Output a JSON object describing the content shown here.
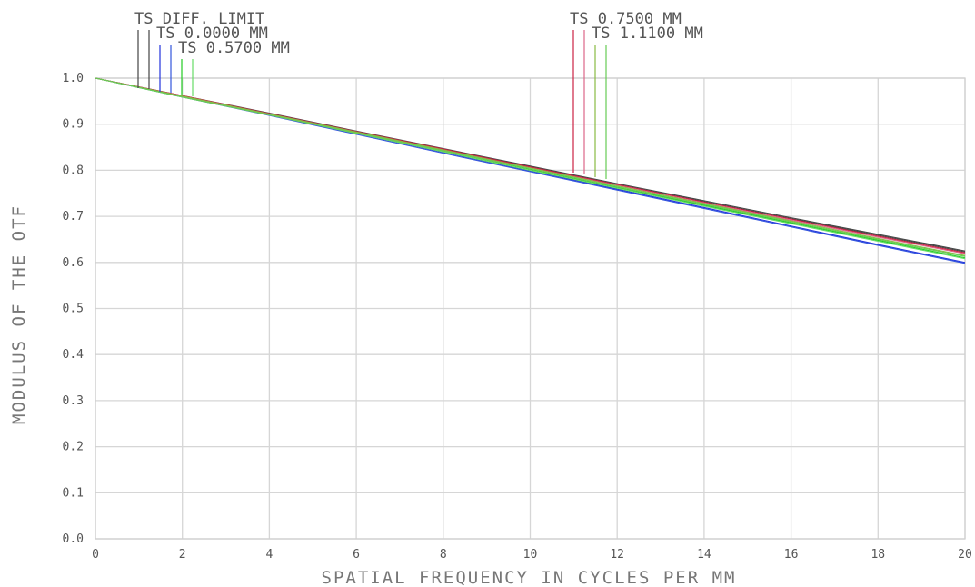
{
  "chart_data": {
    "type": "line",
    "xlabel": "SPATIAL FREQUENCY IN CYCLES PER MM",
    "ylabel": "MODULUS OF THE OTF",
    "xlim": [
      0,
      20
    ],
    "ylim": [
      0,
      1.0
    ],
    "x_ticks": [
      0,
      2,
      4,
      6,
      8,
      10,
      12,
      14,
      16,
      18,
      20
    ],
    "x_tick_labels": [
      "0",
      "2",
      "4",
      "6",
      "8",
      "10",
      "12",
      "14",
      "16",
      "18",
      "20"
    ],
    "y_ticks": [
      0.0,
      0.1,
      0.2,
      0.3,
      0.4,
      0.5,
      0.6,
      0.7,
      0.8,
      0.9,
      1.0
    ],
    "y_tick_labels": [
      "0.0",
      "0.1",
      "0.2",
      "0.3",
      "0.4",
      "0.5",
      "0.6",
      "0.7",
      "0.8",
      "0.9",
      "1.0"
    ],
    "grid": true,
    "legend_position": "top",
    "x": [
      0,
      2,
      4,
      6,
      8,
      10,
      12,
      14,
      16,
      18,
      20
    ],
    "series": [
      {
        "name": "TS DIFF. LIMIT",
        "group": 0,
        "colors": [
          "#444444",
          "#444444"
        ],
        "values": [
          1.0,
          0.962,
          0.924,
          0.885,
          0.847,
          0.809,
          0.771,
          0.734,
          0.697,
          0.661,
          0.625
        ]
      },
      {
        "name": "TS 0.0000 MM",
        "group": 0,
        "colors": [
          "#2233dd",
          "#3355dd"
        ],
        "values": [
          1.0,
          0.961,
          0.921,
          0.88,
          0.839,
          0.799,
          0.759,
          0.719,
          0.679,
          0.639,
          0.6
        ]
      },
      {
        "name": "TS 0.5700 MM",
        "group": 0,
        "colors": [
          "#22cc22",
          "#66dd66"
        ],
        "values": [
          1.0,
          0.961,
          0.922,
          0.882,
          0.842,
          0.802,
          0.763,
          0.724,
          0.686,
          0.648,
          0.61
        ]
      },
      {
        "name": "TS 0.7500 MM",
        "group": 1,
        "colors": [
          "#cc2244",
          "#dd6688"
        ],
        "values": [
          1.0,
          0.962,
          0.923,
          0.884,
          0.846,
          0.807,
          0.769,
          0.731,
          0.694,
          0.657,
          0.621
        ]
      },
      {
        "name": "TS 1.1100 MM",
        "group": 1,
        "colors": [
          "#88bb44",
          "#66cc55"
        ],
        "values": [
          1.0,
          0.961,
          0.922,
          0.883,
          0.844,
          0.805,
          0.766,
          0.728,
          0.69,
          0.652,
          0.615
        ]
      }
    ]
  }
}
